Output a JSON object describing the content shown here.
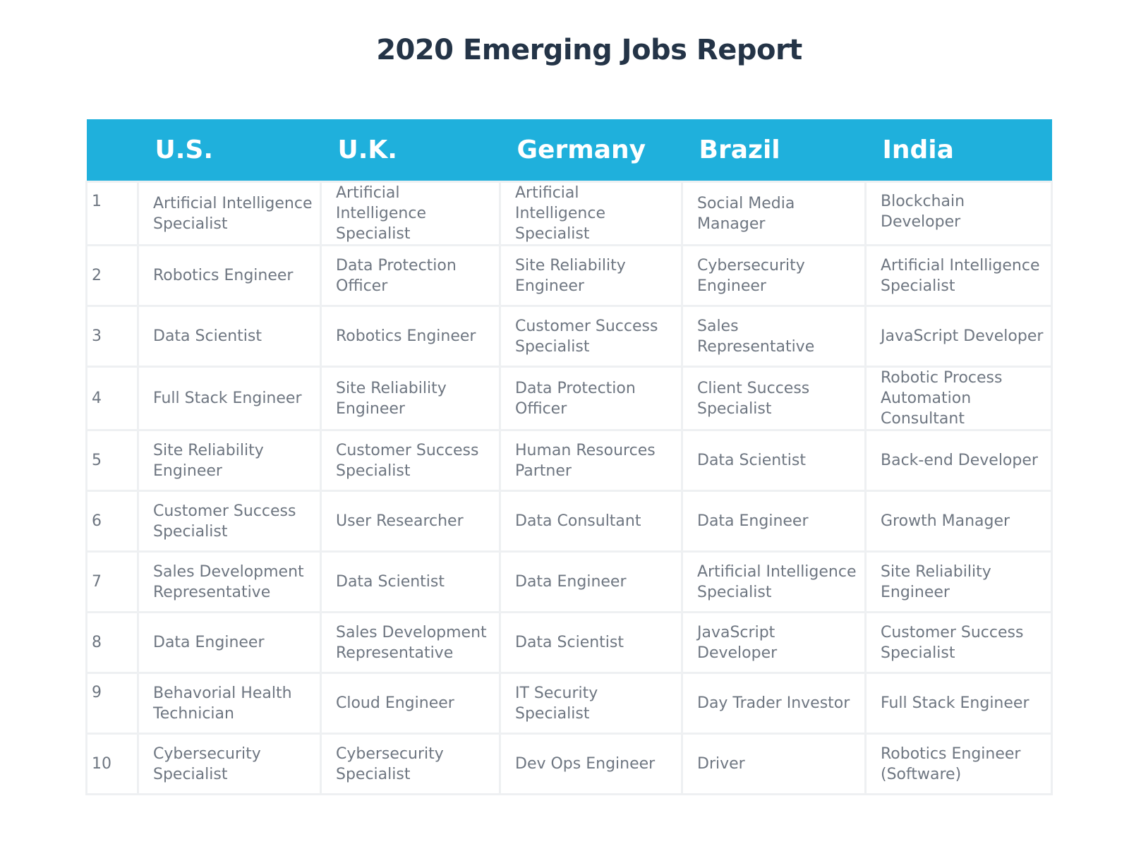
{
  "title": "2020 Emerging Jobs Report",
  "columns": [
    "",
    "U.S.",
    "U.K.",
    "Germany",
    "Brazil",
    "India"
  ],
  "colors": {
    "header_bg": "#1fb0dc",
    "title_text": "#243447",
    "cell_text": "#6e7681",
    "grid": "#eef0f2"
  },
  "rows": [
    {
      "rank": "1",
      "us": "Artificial Intelligence Specialist",
      "uk": "Artificial Intelligence Specialist",
      "de": "Artificial Intelligence Specialist",
      "br": "Social Media Manager",
      "in": "Blockchain Developer"
    },
    {
      "rank": "2",
      "us": "Robotics Engineer",
      "uk": "Data Protection Officer",
      "de": "Site Reliability Engineer",
      "br": "Cybersecurity Engineer",
      "in": "Artificial Intelligence Specialist"
    },
    {
      "rank": "3",
      "us": "Data Scientist",
      "uk": "Robotics Engineer",
      "de": "Customer Success Specialist",
      "br": "Sales Representative",
      "in": "JavaScript Developer"
    },
    {
      "rank": "4",
      "us": "Full Stack Engineer",
      "uk": "Site Reliability Engineer",
      "de": "Data Protection Officer",
      "br": "Client Success Specialist",
      "in": "Robotic Process Automation Consultant"
    },
    {
      "rank": "5",
      "us": "Site Reliability Engineer",
      "uk": "Customer Success Specialist",
      "de": "Human Resources Partner",
      "br": "Data Scientist",
      "in": "Back-end Developer"
    },
    {
      "rank": "6",
      "us": "Customer Success Specialist",
      "uk": "User Researcher",
      "de": "Data Consultant",
      "br": "Data Engineer",
      "in": "Growth Manager"
    },
    {
      "rank": "7",
      "us": "Sales Development Representative",
      "uk": "Data Scientist",
      "de": "Data Engineer",
      "br": "Artificial Intelligence Specialist",
      "in": "Site Reliability Engineer"
    },
    {
      "rank": "8",
      "us": "Data Engineer",
      "uk": "Sales Development Representative",
      "de": "Data Scientist",
      "br": "JavaScript Developer",
      "in": "Customer Success Specialist"
    },
    {
      "rank": "9",
      "us": "Behavorial Health Technician",
      "uk": "Cloud Engineer",
      "de": "IT Security Specialist",
      "br": "Day Trader Investor",
      "in": "Full Stack Engineer"
    },
    {
      "rank": "10",
      "us": "Cybersecurity Specialist",
      "uk": "Cybersecurity Specialist",
      "de": "Dev Ops Engineer",
      "br": "Driver",
      "in": "Robotics Engineer (Software)"
    }
  ]
}
